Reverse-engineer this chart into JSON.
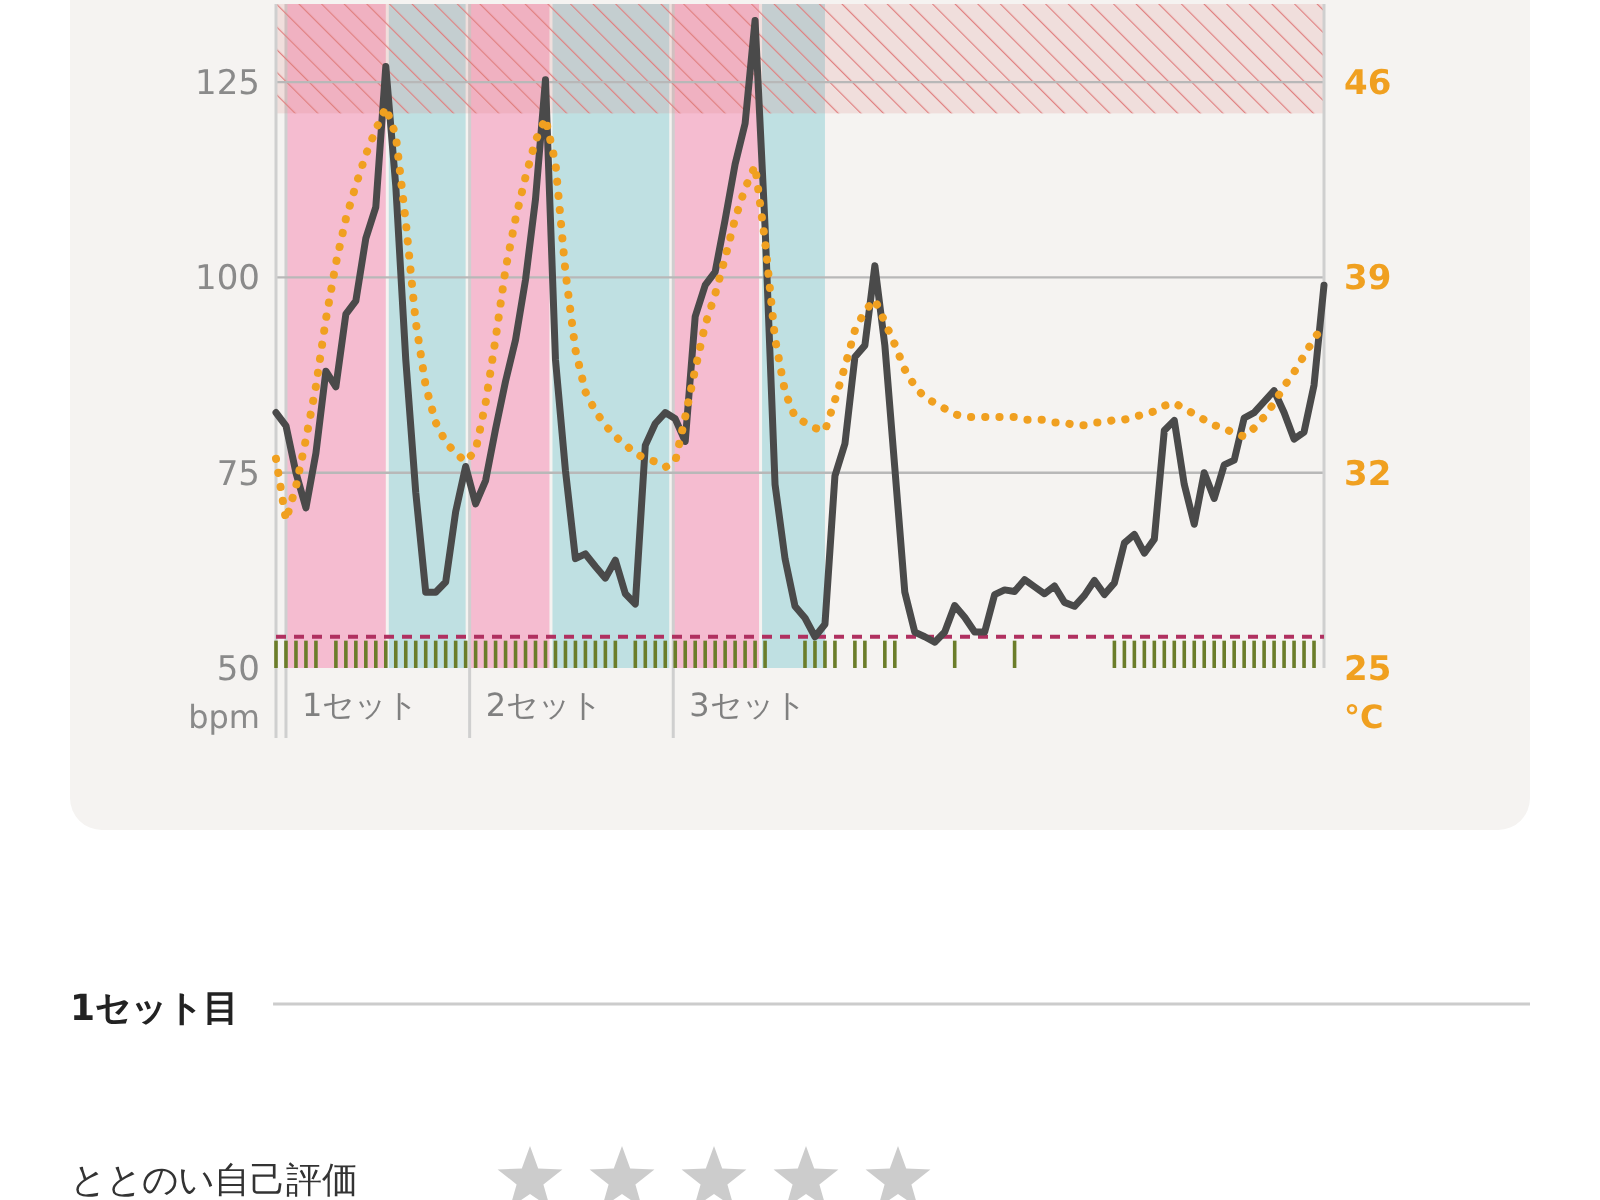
{
  "chart_data": {
    "type": "line",
    "ylabel": "bpm",
    "y2label": "°C",
    "ylim": [
      50,
      135
    ],
    "yticks": [
      50,
      75,
      100,
      125
    ],
    "y2lim": [
      25,
      48.8
    ],
    "y2ticks": [
      25,
      32,
      39,
      46
    ],
    "tick_labels": "y",
    "grid": "y",
    "categories": [
      null,
      null,
      null,
      null,
      null,
      null,
      null,
      null,
      null,
      null,
      null,
      null,
      null,
      null,
      null,
      null,
      null,
      null,
      null,
      null,
      null,
      null,
      null,
      null,
      null,
      null,
      null,
      null,
      null,
      null,
      null,
      null,
      null,
      null,
      null,
      null,
      null,
      null,
      null,
      null,
      null,
      null,
      null,
      null,
      null,
      null,
      null,
      null,
      null,
      null,
      null,
      null,
      null,
      null,
      null,
      null,
      null,
      null,
      null,
      null,
      null,
      null,
      null,
      null,
      null,
      null,
      null,
      null,
      null,
      null,
      null,
      null,
      null,
      null,
      null,
      null,
      null,
      null,
      null,
      null,
      null,
      null,
      null,
      null,
      null,
      null,
      null,
      null,
      null,
      null,
      null,
      null,
      null,
      null,
      null,
      null,
      null,
      null,
      null,
      null,
      null,
      null,
      null,
      null,
      null,
      null
    ],
    "bands": [
      {
        "axis": "y",
        "from": 121,
        "to": 135,
        "color": "#e08080"
      }
    ],
    "ref_lines": [
      {
        "axis": "y",
        "value": 54,
        "color": "#b03060",
        "line_style": "dashed"
      }
    ],
    "series": [
      {
        "type": "bar",
        "color": "#6b7d2a",
        "values": [
          53.5,
          53.5,
          53.5,
          53.5,
          53.5,
          null,
          53.5,
          53.5,
          53.5,
          53.5,
          53.5,
          53.5,
          53.5,
          53.5,
          53.5,
          53.5,
          53.5,
          53.5,
          53.5,
          53.5,
          53.5,
          53.5,
          53.5,
          53.5,
          53.5,
          53.5,
          53.5,
          53.5,
          53.5,
          53.5,
          53.5,
          53.5,
          53.5,
          53.5,
          53.5,
          null,
          53.5,
          53.5,
          53.5,
          53.5,
          53.5,
          53.5,
          53.5,
          53.5,
          53.5,
          53.5,
          53.5,
          53.5,
          53.5,
          53.5,
          null,
          null,
          null,
          53.5,
          53.5,
          53.5,
          53.5,
          null,
          53.5,
          53.5,
          null,
          53.5,
          53.5,
          null,
          null,
          null,
          null,
          null,
          53.5,
          null,
          null,
          null,
          null,
          null,
          53.5,
          null,
          null,
          null,
          null,
          null,
          null,
          null,
          null,
          null,
          53.5,
          53.5,
          53.5,
          53.5,
          53.5,
          53.5,
          53.5,
          53.5,
          53.5,
          53.5,
          53.5,
          53.5,
          53.5,
          53.5,
          53.5,
          53.5,
          53.5,
          53.5,
          53.5,
          53.5,
          53.5,
          null
        ]
      },
      {
        "color": "#4a4a4a",
        "line_style": "solid",
        "values": [
          82.7,
          81,
          75,
          70.5,
          77.5,
          88,
          86,
          95.3,
          97,
          105,
          109,
          127,
          111.7,
          89.5,
          72.5,
          59.7,
          59.7,
          61,
          70,
          75.8,
          71,
          74,
          80.6,
          86.7,
          92,
          99.7,
          110,
          125.3,
          89.5,
          75.3,
          64,
          64.6,
          63,
          61.5,
          63.8,
          59.5,
          58.2,
          78.5,
          81.3,
          82.7,
          81.9,
          79,
          95,
          99,
          100.7,
          107.4,
          114.5,
          119.7,
          132.9,
          106.5,
          73.5,
          64,
          57.9,
          56.4,
          54,
          55.6,
          74.6,
          78.7,
          89.8,
          91.3,
          101.5,
          91.3,
          75.6,
          59.7,
          54.6,
          54,
          53.3,
          54.6,
          58,
          56.5,
          54.6,
          54.6,
          59.4,
          60,
          59.8,
          61.3,
          60.4,
          59.5,
          60.5,
          58.4,
          57.9,
          59.3,
          61.2,
          59.4,
          60.9,
          66,
          67.1,
          64.7,
          66.5,
          80.4,
          81.7,
          73.5,
          68.4,
          75,
          71.7,
          76,
          76.6,
          82,
          82.7,
          84.1,
          85.5,
          82.7,
          79.3,
          80.2,
          86.2,
          99
        ]
      },
      {
        "axis": "y2",
        "color": "#f0a020",
        "line_style": "dotted",
        "values": [
          32.5,
          30.3,
          31.5,
          33.2,
          35.1,
          37.5,
          39.5,
          41.1,
          42.3,
          43.4,
          44.3,
          45.1,
          44.1,
          41,
          37.4,
          35.1,
          33.8,
          33.1,
          32.7,
          32.4,
          32.8,
          34.5,
          36.8,
          39.3,
          41.1,
          42.6,
          43.9,
          44.7,
          43.1,
          39.2,
          36.4,
          34.9,
          34.2,
          33.7,
          33.3,
          33,
          32.7,
          32.5,
          32.4,
          32.2,
          32.4,
          34,
          35.7,
          37.3,
          38.4,
          39.7,
          41.1,
          42.2,
          43,
          40.3,
          36.8,
          34.9,
          34,
          33.8,
          33.6,
          33.5,
          34.6,
          35.8,
          37.1,
          37.8,
          38.2,
          37.4,
          36.6,
          35.7,
          35.1,
          34.7,
          34.5,
          34.3,
          34.1,
          34,
          34,
          34,
          34,
          34,
          34,
          33.9,
          33.9,
          33.9,
          33.8,
          33.8,
          33.7,
          33.7,
          33.8,
          33.8,
          33.9,
          33.9,
          34,
          34.1,
          34.2,
          34.4,
          34.5,
          34.3,
          34.1,
          33.9,
          33.7,
          33.6,
          33.4,
          33.3,
          33.6,
          34,
          34.5,
          35.1,
          35.6,
          36.2,
          36.8,
          37.3
        ]
      }
    ],
    "annotations": [
      "1セット",
      "2セット",
      "3セット",
      "1セット目",
      "ととのい自己評価"
    ]
  }
}
